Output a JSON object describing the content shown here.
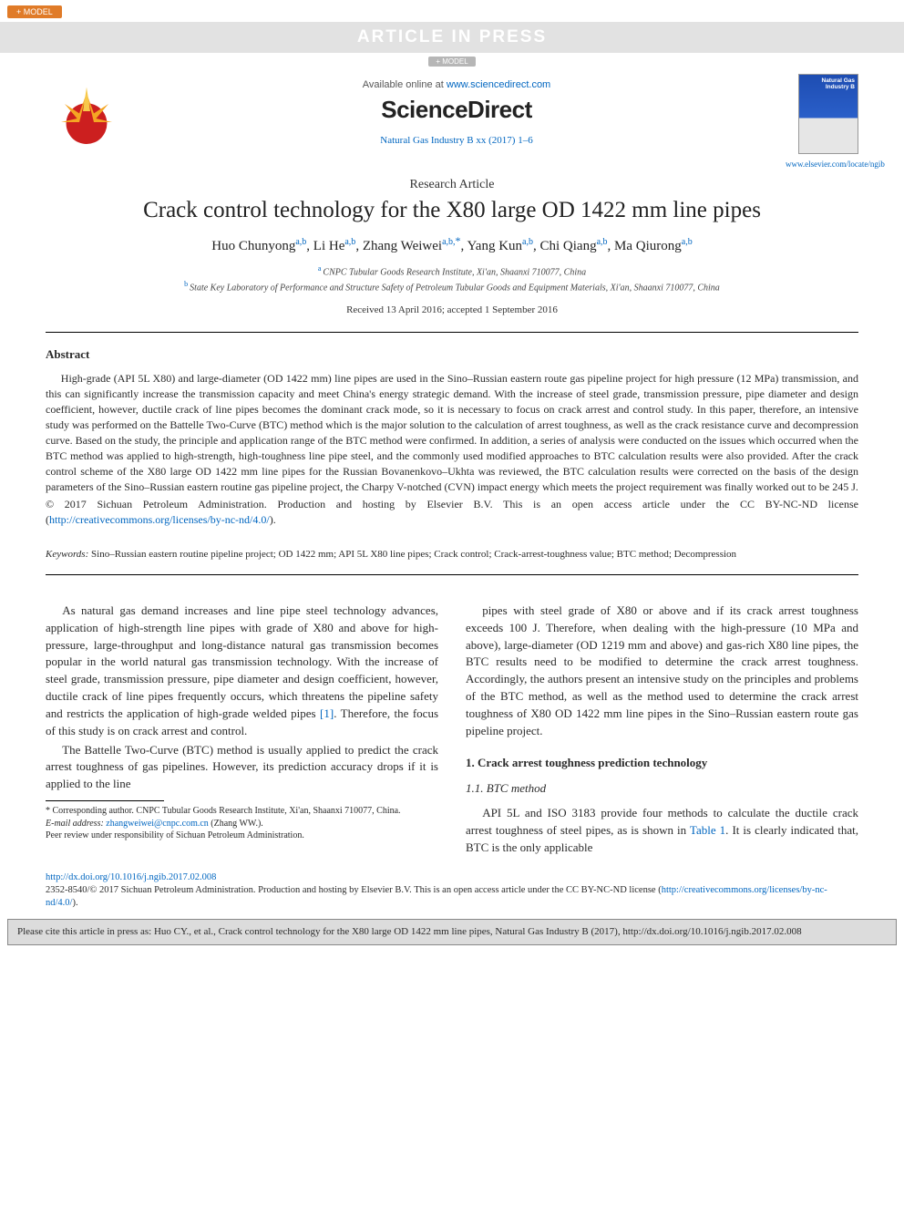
{
  "badges": {
    "model": "+ MODEL",
    "press": "ARTICLE IN PRESS",
    "model_small": "+ MODEL"
  },
  "header": {
    "available_prefix": "Available online at ",
    "available_url": "www.sciencedirect.com",
    "sd_logo": "ScienceDirect",
    "journal_ref": "Natural Gas Industry B xx (2017) 1–6",
    "journal_home": "www.elsevier.com/locate/ngib",
    "cover_title": "Natural Gas Industry B"
  },
  "article": {
    "type": "Research Article",
    "title": "Crack control technology for the X80 large OD 1422 mm line pipes",
    "authors_html": [
      {
        "name": "Huo Chunyong",
        "aff": "a,b"
      },
      {
        "name": "Li He",
        "aff": "a,b"
      },
      {
        "name": "Zhang Weiwei",
        "aff": "a,b,",
        "corr": "*"
      },
      {
        "name": "Yang Kun",
        "aff": "a,b"
      },
      {
        "name": "Chi Qiang",
        "aff": "a,b"
      },
      {
        "name": "Ma Qiurong",
        "aff": "a,b"
      }
    ],
    "affiliations": [
      {
        "sup": "a",
        "text": "CNPC Tubular Goods Research Institute, Xi'an, Shaanxi 710077, China"
      },
      {
        "sup": "b",
        "text": "State Key Laboratory of Performance and Structure Safety of Petroleum Tubular Goods and Equipment Materials, Xi'an, Shaanxi 710077, China"
      }
    ],
    "dates": "Received 13 April 2016; accepted 1 September 2016"
  },
  "abstract": {
    "heading": "Abstract",
    "text": "High-grade (API 5L X80) and large-diameter (OD 1422 mm) line pipes are used in the Sino–Russian eastern route gas pipeline project for high pressure (12 MPa) transmission, and this can significantly increase the transmission capacity and meet China's energy strategic demand. With the increase of steel grade, transmission pressure, pipe diameter and design coefficient, however, ductile crack of line pipes becomes the dominant crack mode, so it is necessary to focus on crack arrest and control study. In this paper, therefore, an intensive study was performed on the Battelle Two-Curve (BTC) method which is the major solution to the calculation of arrest toughness, as well as the crack resistance curve and decompression curve. Based on the study, the principle and application range of the BTC method were confirmed. In addition, a series of analysis were conducted on the issues which occurred when the BTC method was applied to high-strength, high-toughness line pipe steel, and the commonly used modified approaches to BTC calculation results were also provided. After the crack control scheme of the X80 large OD 1422 mm line pipes for the Russian Bovanenkovo–Ukhta was reviewed, the BTC calculation results were corrected on the basis of the design parameters of the Sino–Russian eastern routine gas pipeline project, the Charpy V-notched (CVN) impact energy which meets the project requirement was finally worked out to be 245 J.",
    "copyright": "© 2017 Sichuan Petroleum Administration. Production and hosting by Elsevier B.V. This is an open access article under the CC BY-NC-ND license (",
    "lic_url": "http://creativecommons.org/licenses/by-nc-nd/4.0/",
    "copyright_tail": ")."
  },
  "keywords": {
    "label": "Keywords:",
    "text": " Sino–Russian eastern routine pipeline project; OD 1422 mm; API 5L X80 line pipes; Crack control; Crack-arrest-toughness value; BTC method; Decompression"
  },
  "body": {
    "left_p1": "As natural gas demand increases and line pipe steel technology advances, application of high-strength line pipes with grade of X80 and above for high-pressure, large-throughput and long-distance natural gas transmission becomes popular in the world natural gas transmission technology. With the increase of steel grade, transmission pressure, pipe diameter and design coefficient, however, ductile crack of line pipes frequently occurs, which threatens the pipeline safety and restricts the application of high-grade welded pipes ",
    "left_ref1": "[1]",
    "left_p1_tail": ". Therefore, the focus of this study is on crack arrest and control.",
    "left_p2": "The Battelle Two-Curve (BTC) method is usually applied to predict the crack arrest toughness of gas pipelines. However, its prediction accuracy drops if it is applied to the line",
    "right_p1": "pipes with steel grade of X80 or above and if its crack arrest toughness exceeds 100 J. Therefore, when dealing with the high-pressure (10 MPa and above), large-diameter (OD 1219 mm and above) and gas-rich X80 line pipes, the BTC results need to be modified to determine the crack arrest toughness. Accordingly, the authors present an intensive study on the principles and problems of the BTC method, as well as the method used to determine the crack arrest toughness of X80 OD 1422 mm line pipes in the Sino–Russian eastern route gas pipeline project.",
    "sec1_h": "1. Crack arrest toughness prediction technology",
    "sec11_h": "1.1. BTC method",
    "right_p2_a": "API 5L and ISO 3183 provide four methods to calculate the ductile crack arrest toughness of steel pipes, as is shown in ",
    "right_table_ref": "Table 1",
    "right_p2_b": ". It is clearly indicated that, BTC is the only applicable"
  },
  "footnotes": {
    "corr": "* Corresponding author. CNPC Tubular Goods Research Institute, Xi'an, Shaanxi 710077, China.",
    "email_label": "E-mail address:",
    "email": "zhangweiwei@cnpc.com.cn",
    "email_tail": " (Zhang WW.).",
    "peer": "Peer review under responsibility of Sichuan Petroleum Administration."
  },
  "doi": {
    "url": "http://dx.doi.org/10.1016/j.ngib.2017.02.008",
    "issn_line": "2352-8540/© 2017 Sichuan Petroleum Administration. Production and hosting by Elsevier B.V. This is an open access article under the CC BY-NC-ND license (",
    "lic_url": "http://creativecommons.org/licenses/by-nc-nd/4.0/",
    "issn_tail": ")."
  },
  "citebox": {
    "text_a": "Please cite this article in press as: Huo CY., et al., Crack control technology for the X80 large OD 1422 mm line pipes, Natural Gas Industry B (2017), http://dx.doi.org/10.1016/j.ngib.2017.02.008"
  }
}
